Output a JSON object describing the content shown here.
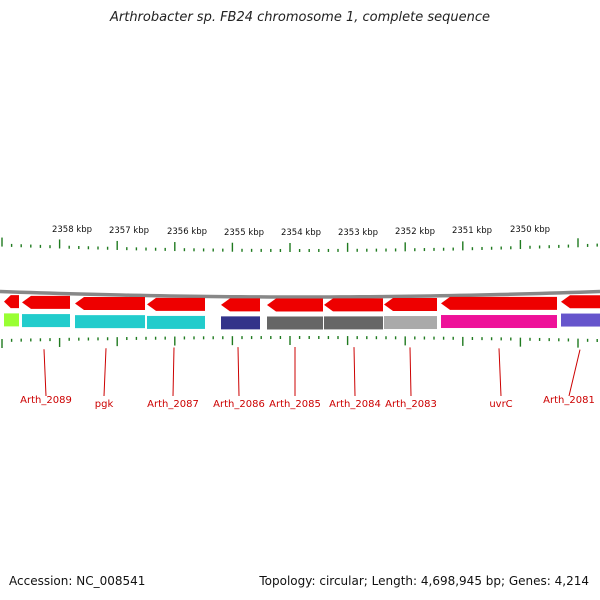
{
  "title": "Arthrobacter sp. FB24 chromosome 1, complete sequence",
  "footer": {
    "accession": "Accession: NC_008541",
    "summary": "Topology: circular; Length: 4,698,945 bp; Genes: 4,214"
  },
  "colors": {
    "gene_arrow": "#ee0000",
    "gene_label": "#cc0000",
    "backbone": "#888888",
    "tick": "#1f7a1f",
    "kbp_label": "#111111"
  },
  "kbp_labels": [
    {
      "label": "2358 kbp"
    },
    {
      "label": "2357 kbp"
    },
    {
      "label": "2356 kbp"
    },
    {
      "label": "2355 kbp"
    },
    {
      "label": "2354 kbp"
    },
    {
      "label": "2353 kbp"
    },
    {
      "label": "2352 kbp"
    },
    {
      "label": "2351 kbp"
    },
    {
      "label": "2350 kbp"
    }
  ],
  "genes": [
    {
      "name": "gene-partial-left",
      "color": "#99ff33"
    },
    {
      "name": "Arth_2089",
      "label": "Arth_2089",
      "color": "#22cccc"
    },
    {
      "name": "pgk",
      "label": "pgk",
      "color": "#22cccc"
    },
    {
      "name": "Arth_2087",
      "label": "Arth_2087",
      "color": "#22cccc"
    },
    {
      "name": "Arth_2086",
      "label": "Arth_2086",
      "color": "#33338a"
    },
    {
      "name": "Arth_2085",
      "label": "Arth_2085",
      "color": "#666666"
    },
    {
      "name": "Arth_2084",
      "label": "Arth_2084",
      "color": "#666666"
    },
    {
      "name": "Arth_2083",
      "label": "Arth_2083",
      "color": "#aaaaaa"
    },
    {
      "name": "uvrC",
      "label": "uvrC",
      "color": "#ee1199"
    },
    {
      "name": "Arth_2081",
      "label": "Arth_2081",
      "color": "#6655cc"
    }
  ]
}
